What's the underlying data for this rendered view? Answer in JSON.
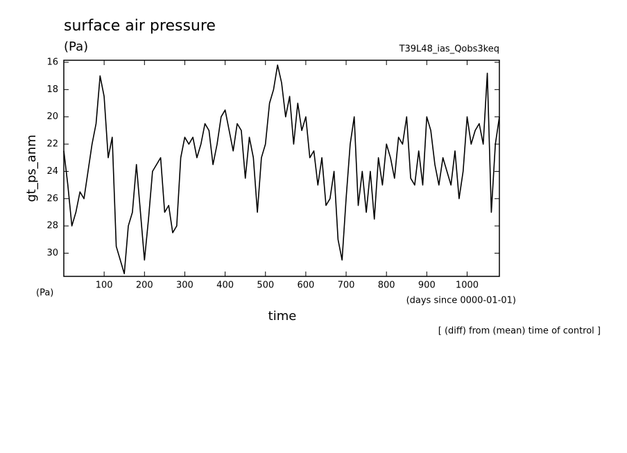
{
  "chart_data": {
    "type": "line",
    "title": "surface air pressure",
    "units_top": "(Pa)",
    "experiment": "T39L48_ias_Qobs3keq",
    "ylabel": "gt_ps_anm",
    "units_bottom": "(Pa)",
    "xunits": "(days since 0000-01-01)",
    "xlabel": "time",
    "note": "[ (diff) from (mean) time of control ]",
    "color": "#000000",
    "xlim": [
      0,
      1080
    ],
    "ylim": [
      31.7,
      15.85
    ],
    "y_inverted": true,
    "xticks": [
      100,
      200,
      300,
      400,
      500,
      600,
      700,
      800,
      900,
      1000
    ],
    "yticks": [
      16,
      18,
      20,
      22,
      24,
      26,
      28,
      30
    ],
    "x": [
      0,
      10,
      20,
      30,
      40,
      50,
      60,
      70,
      80,
      90,
      100,
      110,
      120,
      130,
      140,
      150,
      160,
      170,
      180,
      190,
      200,
      210,
      220,
      230,
      240,
      250,
      260,
      270,
      280,
      290,
      300,
      310,
      320,
      330,
      340,
      350,
      360,
      370,
      380,
      390,
      400,
      410,
      420,
      430,
      440,
      450,
      460,
      470,
      480,
      490,
      500,
      510,
      520,
      530,
      540,
      550,
      560,
      570,
      580,
      590,
      600,
      610,
      620,
      630,
      640,
      650,
      660,
      670,
      680,
      690,
      700,
      710,
      720,
      730,
      740,
      750,
      760,
      770,
      780,
      790,
      800,
      810,
      820,
      830,
      840,
      850,
      860,
      870,
      880,
      890,
      900,
      910,
      920,
      930,
      940,
      950,
      960,
      970,
      980,
      990,
      1000,
      1010,
      1020,
      1030,
      1040,
      1050,
      1060,
      1070,
      1080
    ],
    "values": [
      22.5,
      25,
      28,
      27,
      25.5,
      26,
      24,
      22,
      20.5,
      17,
      18.5,
      23,
      21.5,
      29.5,
      30.5,
      31.5,
      28,
      27,
      23.5,
      27,
      30.5,
      27.5,
      24,
      23.5,
      23,
      27,
      26.5,
      28.5,
      28,
      23,
      21.5,
      22,
      21.5,
      23,
      22,
      20.5,
      21,
      23.5,
      22,
      20,
      19.5,
      21,
      22.5,
      20.5,
      21,
      24.5,
      21.5,
      23,
      27,
      23,
      22,
      19,
      18,
      16.2,
      17.5,
      20,
      18.5,
      22,
      19,
      21,
      20,
      23,
      22.5,
      25,
      23,
      26.5,
      26,
      24,
      29,
      30.5,
      26,
      22,
      20,
      26.5,
      24,
      27,
      24,
      27.5,
      23,
      25,
      22,
      23,
      24.5,
      21.5,
      22,
      20,
      24.5,
      25,
      22.5,
      25,
      20,
      21,
      23.5,
      25,
      23,
      24,
      25,
      22.5,
      26,
      24,
      20,
      22,
      21,
      20.5,
      22,
      16.8,
      27,
      22,
      20
    ]
  }
}
